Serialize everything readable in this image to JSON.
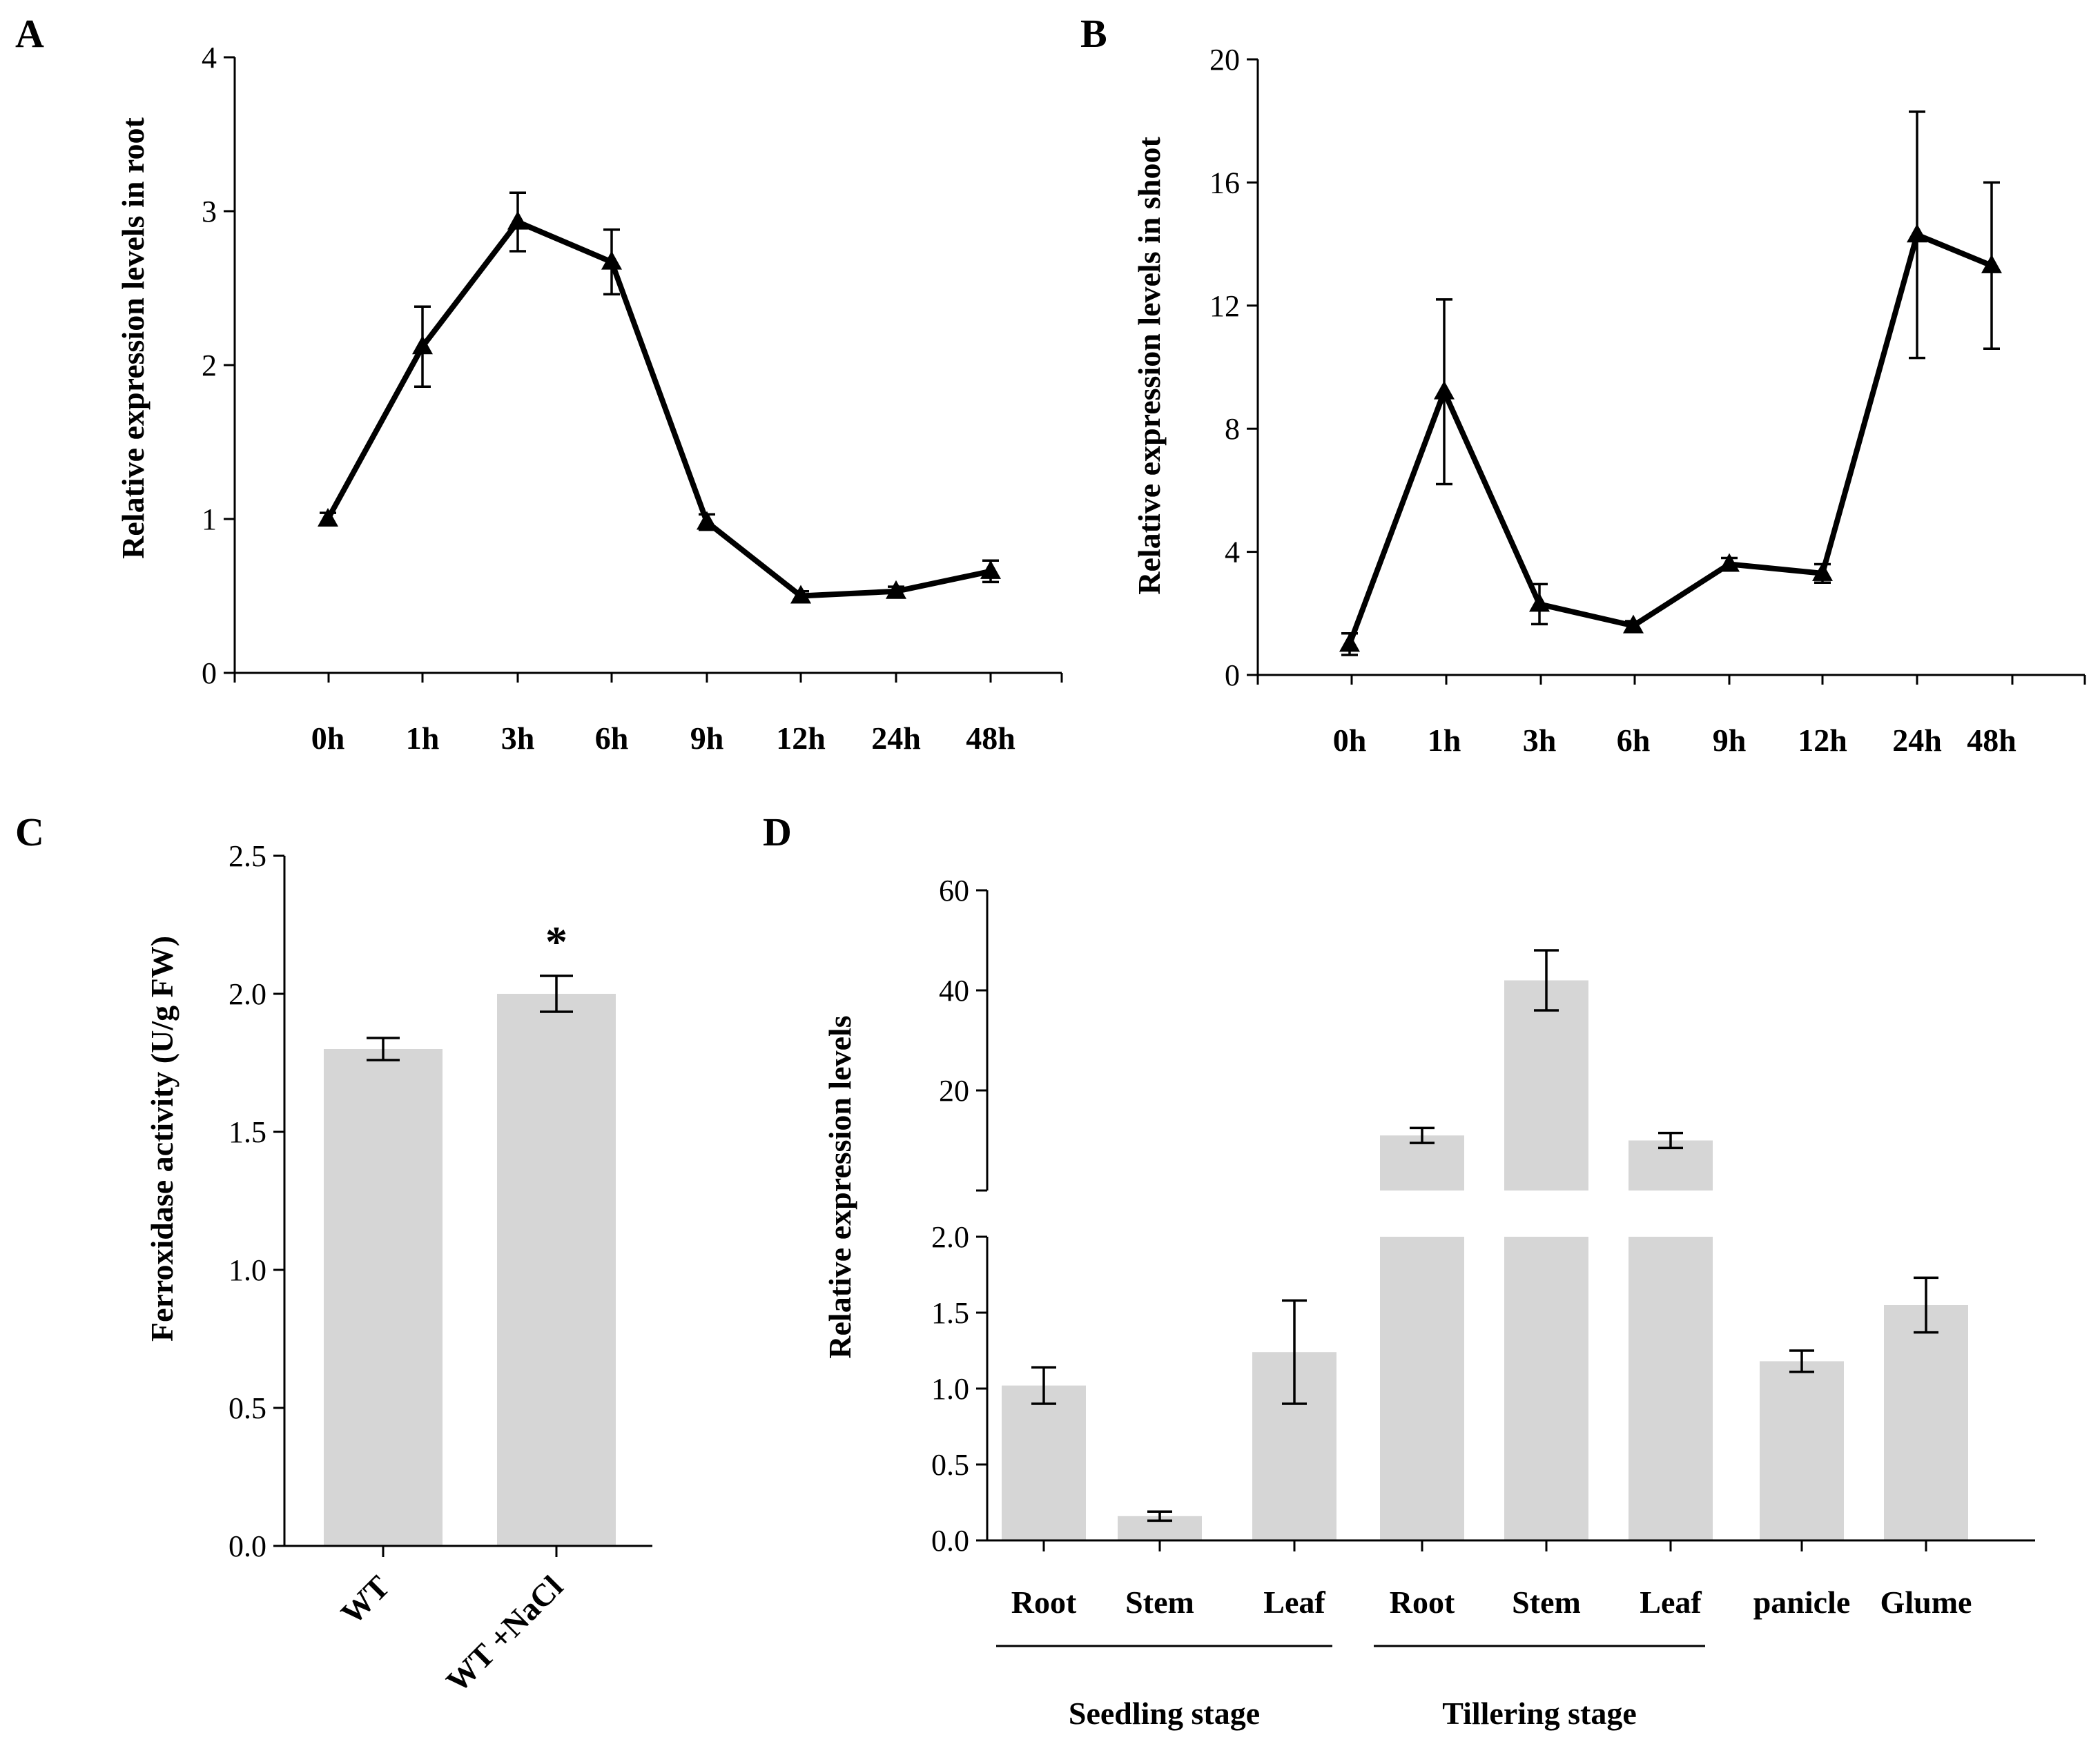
{
  "chart_data": [
    {
      "panel": "A",
      "type": "line",
      "categories": [
        "0h",
        "1h",
        "3h",
        "6h",
        "9h",
        "12h",
        "24h",
        "48h"
      ],
      "values": [
        1.0,
        2.12,
        2.93,
        2.67,
        0.98,
        0.5,
        0.53,
        0.66
      ],
      "errors": [
        0.04,
        0.26,
        0.19,
        0.21,
        0.05,
        0.03,
        0.03,
        0.07
      ],
      "ylabel": "Relative expression levels in root",
      "xlabel": "",
      "ylim": [
        0,
        4
      ],
      "yticks": [
        "0",
        "1",
        "2",
        "3",
        "4"
      ],
      "marker": "triangle"
    },
    {
      "panel": "B",
      "type": "line",
      "categories": [
        "0h",
        "1h",
        "3h",
        "6h",
        "9h",
        "12h",
        "24h",
        "48h"
      ],
      "values": [
        1.0,
        9.2,
        2.3,
        1.6,
        3.6,
        3.3,
        14.3,
        13.3
      ],
      "errors": [
        0.35,
        3.0,
        0.65,
        0.15,
        0.2,
        0.3,
        4.0,
        2.7
      ],
      "ylabel": "Relative expression levels in shoot",
      "xlabel": "",
      "ylim": [
        0,
        20
      ],
      "yticks": [
        "0",
        "4",
        "8",
        "12",
        "16",
        "20"
      ],
      "marker": "triangle"
    },
    {
      "panel": "C",
      "type": "bar",
      "categories": [
        "WT",
        "WT +NaCl"
      ],
      "values": [
        1.8,
        2.0
      ],
      "errors": [
        0.04,
        0.065
      ],
      "annotations": [
        "",
        "*"
      ],
      "ylabel": "Ferroxidase activity (U/g FW)",
      "xlabel": "",
      "ylim": [
        0,
        2.5
      ],
      "yticks": [
        "0.0",
        "0.5",
        "1.0",
        "1.5",
        "2.0",
        "2.5"
      ]
    },
    {
      "panel": "D",
      "type": "bar",
      "categories": [
        "Root",
        "Stem",
        "Leaf",
        "Root",
        "Stem",
        "Leaf",
        "panicle",
        "Glume"
      ],
      "values": [
        1.02,
        0.16,
        1.24,
        11.0,
        42.0,
        10.0,
        1.18,
        1.55
      ],
      "errors": [
        0.12,
        0.03,
        0.34,
        1.5,
        6.0,
        1.5,
        0.07,
        0.18
      ],
      "groups": [
        {
          "label": "Seedling stage",
          "members": [
            0,
            1,
            2
          ]
        },
        {
          "label": "Tillering stage",
          "members": [
            3,
            4,
            5
          ]
        }
      ],
      "ylabel": "Relative expression levels",
      "xlabel": "",
      "axis_break": {
        "lower_ylim": [
          0,
          2.0
        ],
        "upper_ylim": [
          0,
          60
        ]
      },
      "yticks_lower": [
        "0.0",
        "0.5",
        "1.0",
        "1.5",
        "2.0"
      ],
      "yticks_upper": [
        "20",
        "40",
        "60"
      ]
    }
  ]
}
